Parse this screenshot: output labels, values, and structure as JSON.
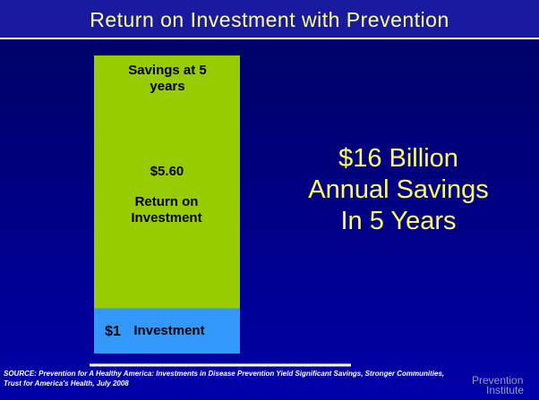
{
  "chart_data": {
    "type": "bar",
    "stacked": true,
    "title": "Return on Investment with Prevention",
    "bar_heading": "Savings at 5 years",
    "series": [
      {
        "name": "Investment",
        "color": "#3399ff",
        "values": [
          1
        ],
        "value_labels": [
          "$1"
        ]
      },
      {
        "name": "Return on Investment",
        "color": "#99cc00",
        "values": [
          5.6
        ],
        "value_labels": [
          "$5.60"
        ]
      }
    ],
    "annotation": [
      "$16 Billion",
      "Annual Savings",
      "In 5 Years"
    ],
    "source_label": "SOURCE:",
    "source": "Prevention for A Healthy America: Investments in Disease Prevention Yield Significant Savings, Stronger Communities, Trust for America's Health, July 2008",
    "logo": [
      "Prevention",
      "Institute"
    ]
  }
}
